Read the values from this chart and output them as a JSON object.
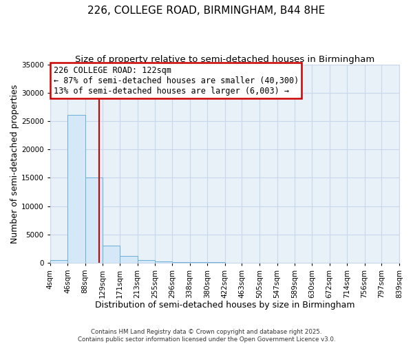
{
  "title": "226, COLLEGE ROAD, BIRMINGHAM, B44 8HE",
  "subtitle": "Size of property relative to semi-detached houses in Birmingham",
  "xlabel": "Distribution of semi-detached houses by size in Birmingham",
  "ylabel": "Number of semi-detached properties",
  "footer": "Contains HM Land Registry data © Crown copyright and database right 2025.\nContains public sector information licensed under the Open Government Licence v3.0.",
  "bins": [
    4,
    46,
    88,
    129,
    171,
    213,
    255,
    296,
    338,
    380,
    422,
    463,
    505,
    547,
    589,
    630,
    672,
    714,
    756,
    797,
    839
  ],
  "bin_labels": [
    "4sqm",
    "46sqm",
    "88sqm",
    "129sqm",
    "171sqm",
    "213sqm",
    "255sqm",
    "296sqm",
    "338sqm",
    "380sqm",
    "422sqm",
    "463sqm",
    "505sqm",
    "547sqm",
    "589sqm",
    "630sqm",
    "672sqm",
    "714sqm",
    "756sqm",
    "797sqm",
    "839sqm"
  ],
  "counts": [
    420,
    26100,
    15100,
    3000,
    1200,
    450,
    150,
    80,
    50,
    30,
    20,
    10,
    8,
    5,
    4,
    3,
    2,
    2,
    1,
    1
  ],
  "bar_color": "#d4e8f7",
  "bar_edge_color": "#6aaed6",
  "property_size": 122,
  "vline_color": "#cc0000",
  "annotation_text": "226 COLLEGE ROAD: 122sqm\n← 87% of semi-detached houses are smaller (40,300)\n13% of semi-detached houses are larger (6,003) →",
  "annotation_box_color": "#cc0000",
  "ylim": [
    0,
    35000
  ],
  "yticks": [
    0,
    5000,
    10000,
    15000,
    20000,
    25000,
    30000,
    35000
  ],
  "background_color": "#ffffff",
  "grid_color": "#c8d8ec",
  "title_fontsize": 11,
  "subtitle_fontsize": 9.5,
  "axis_label_fontsize": 9,
  "tick_fontsize": 7.5,
  "annotation_fontsize": 8.5
}
